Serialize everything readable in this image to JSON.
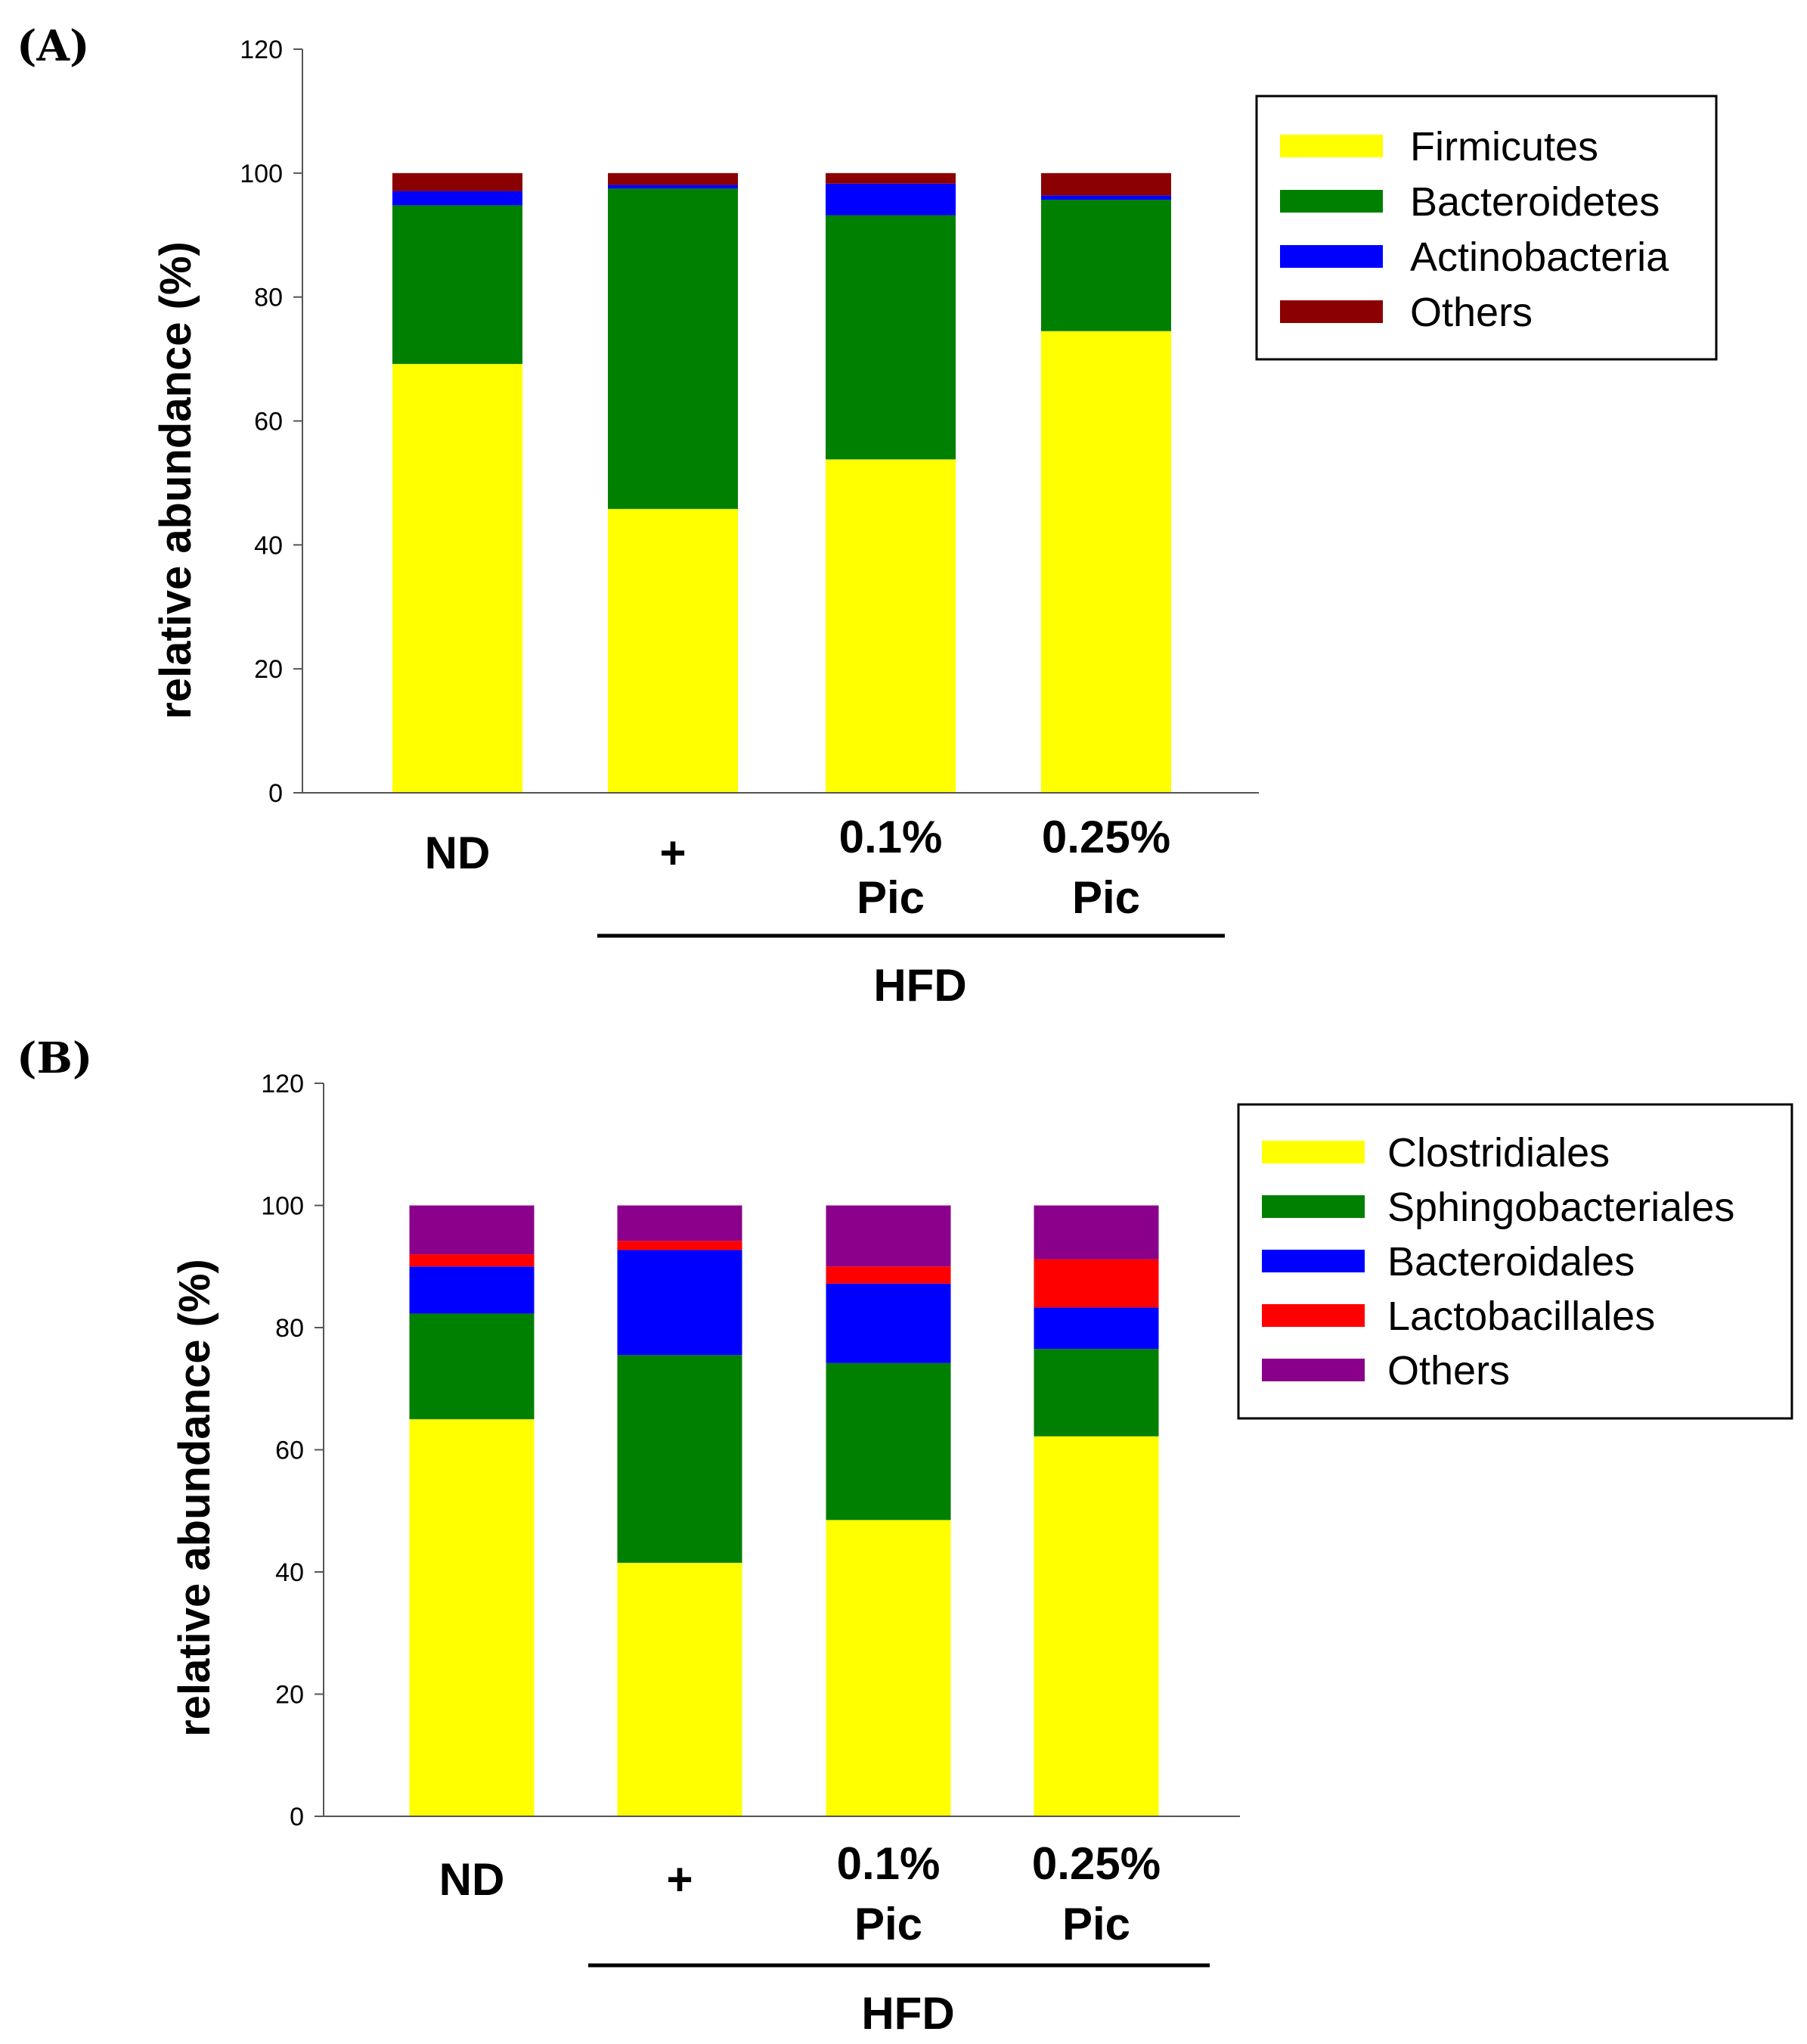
{
  "chart_data": [
    {
      "panel": "(A)",
      "type": "stacked-bar",
      "ylabel": "relative abundance (%)",
      "ylim": [
        0,
        120
      ],
      "yticks": [
        0,
        20,
        40,
        60,
        80,
        100,
        120
      ],
      "categories": [
        [
          "ND"
        ],
        [
          "+"
        ],
        [
          "0.1%",
          "Pic"
        ],
        [
          "0.25%",
          "Pic"
        ]
      ],
      "group_label": "HFD",
      "group_spans": [
        1,
        3
      ],
      "series": [
        {
          "name": "Firmicutes",
          "color": "#ffff00",
          "values": [
            69.2,
            45.8,
            53.8,
            74.5
          ]
        },
        {
          "name": "Bacteroidetes",
          "color": "#008000",
          "values": [
            25.6,
            51.7,
            39.4,
            21.2
          ]
        },
        {
          "name": "Actinobacteria",
          "color": "#0000ff",
          "values": [
            2.3,
            0.6,
            5.1,
            0.7
          ]
        },
        {
          "name": "Others",
          "color": "#8b0000",
          "values": [
            2.9,
            1.9,
            1.7,
            3.6
          ]
        }
      ]
    },
    {
      "panel": "(B)",
      "type": "stacked-bar",
      "ylabel": "relative abundance (%)",
      "ylim": [
        0,
        120
      ],
      "yticks": [
        0,
        20,
        40,
        60,
        80,
        100,
        120
      ],
      "categories": [
        [
          "ND"
        ],
        [
          "+"
        ],
        [
          "0.1%",
          "Pic"
        ],
        [
          "0.25%",
          "Pic"
        ]
      ],
      "group_label": "HFD",
      "group_spans": [
        1,
        3
      ],
      "series": [
        {
          "name": "Clostridiales",
          "color": "#ffff00",
          "values": [
            65.0,
            41.5,
            48.5,
            62.2
          ]
        },
        {
          "name": "Sphingobacteriales",
          "color": "#008000",
          "values": [
            17.3,
            34.0,
            25.7,
            14.3
          ]
        },
        {
          "name": "Bacteroidales",
          "color": "#0000ff",
          "values": [
            7.7,
            17.2,
            13.0,
            6.8
          ]
        },
        {
          "name": "Lactobacillales",
          "color": "#ff0000",
          "values": [
            2.0,
            1.5,
            2.8,
            7.9
          ]
        },
        {
          "name": "Others",
          "color": "#8b008b",
          "values": [
            8.0,
            5.8,
            10.0,
            8.8
          ]
        }
      ]
    }
  ]
}
